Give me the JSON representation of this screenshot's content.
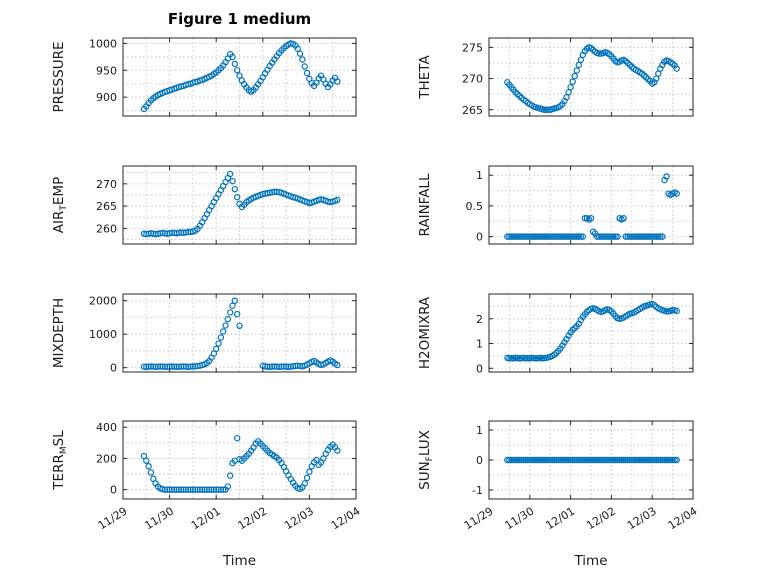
{
  "figure": {
    "title": "Figure 1 medium",
    "background": "#ffffff"
  },
  "style": {
    "marker_color": "#0072BD",
    "axis_color": "#262626",
    "grid_color": "#c8c8c8",
    "text_color": "#1a1a1a"
  },
  "time_axis": {
    "label": "Time",
    "xlim": [
      0,
      5
    ],
    "tick_positions": [
      0,
      1,
      2,
      3,
      4,
      5
    ],
    "tick_labels": [
      "11/29",
      "11/30",
      "12/01",
      "12/02",
      "12/03",
      "12/04"
    ]
  },
  "chart_data": [
    {
      "name": "PRESSURE",
      "type": "scatter",
      "marker": "open-circle",
      "ylabel_parts": {
        "pre": "PRESSURE",
        "sub": "",
        "post": ""
      },
      "ylim": [
        865,
        1010
      ],
      "yticks": [
        900,
        950,
        1000
      ],
      "x_start": 0.45,
      "x_step": 0.05,
      "values": [
        878,
        883,
        889,
        894,
        898,
        901,
        904,
        906,
        908,
        910,
        911,
        913,
        914,
        916,
        917,
        919,
        920,
        921,
        923,
        924,
        925,
        927,
        928,
        929,
        931,
        932,
        934,
        936,
        938,
        940,
        943,
        946,
        950,
        954,
        959,
        965,
        972,
        980,
        975,
        962,
        950,
        940,
        931,
        924,
        918,
        913,
        910,
        913,
        918,
        924,
        930,
        937,
        944,
        951,
        958,
        964,
        970,
        976,
        982,
        987,
        991,
        995,
        998,
        1000,
        999,
        996,
        990,
        981,
        970,
        957,
        945,
        934,
        926,
        921,
        927,
        935,
        940,
        933,
        925,
        919,
        924,
        931,
        936,
        929
      ]
    },
    {
      "name": "THETA",
      "type": "scatter",
      "marker": "open-circle",
      "ylabel_parts": {
        "pre": "THETA",
        "sub": "",
        "post": ""
      },
      "ylim": [
        264,
        276.5
      ],
      "yticks": [
        265,
        270,
        275
      ],
      "x_start": 0.45,
      "x_step": 0.05,
      "values": [
        269.4,
        269.0,
        268.6,
        268.2,
        267.8,
        267.5,
        267.2,
        266.9,
        266.6,
        266.4,
        266.1,
        265.9,
        265.7,
        265.5,
        265.4,
        265.3,
        265.2,
        265.1,
        265.0,
        265.0,
        265.0,
        265.0,
        265.1,
        265.2,
        265.3,
        265.4,
        265.6,
        265.9,
        266.4,
        267.0,
        267.8,
        268.6,
        269.5,
        270.4,
        271.3,
        272.2,
        273.0,
        273.8,
        274.4,
        274.8,
        275.0,
        274.9,
        274.6,
        274.3,
        274.1,
        274.0,
        274.0,
        274.1,
        274.2,
        274.1,
        273.9,
        273.6,
        273.2,
        272.8,
        272.6,
        272.7,
        272.9,
        273.0,
        272.8,
        272.5,
        272.2,
        271.9,
        271.6,
        271.4,
        271.2,
        271.0,
        270.8,
        270.5,
        270.2,
        269.9,
        269.6,
        269.2,
        269.4,
        270.0,
        270.8,
        271.6,
        272.2,
        272.7,
        272.9,
        272.8,
        272.6,
        272.4,
        272.1,
        271.6
      ]
    },
    {
      "name": "AIR_TEMP",
      "type": "scatter",
      "marker": "open-circle",
      "ylabel_parts": {
        "pre": "AIR",
        "sub": "T",
        "post": "EMP"
      },
      "ylim": [
        256.5,
        274
      ],
      "yticks": [
        260,
        265,
        270
      ],
      "x_start": 0.45,
      "x_step": 0.05,
      "values": [
        258.8,
        258.7,
        258.8,
        258.9,
        258.8,
        258.7,
        258.8,
        258.9,
        259.0,
        258.9,
        258.8,
        258.9,
        259.0,
        259.0,
        258.9,
        259.0,
        259.1,
        259.0,
        259.1,
        259.2,
        259.2,
        259.3,
        259.5,
        259.9,
        260.6,
        261.4,
        262.3,
        263.2,
        264.1,
        265.0,
        265.9,
        266.8,
        267.7,
        268.6,
        269.5,
        270.4,
        271.3,
        272.2,
        270.6,
        268.8,
        267.0,
        265.5,
        264.8,
        265.3,
        265.9,
        266.3,
        266.6,
        266.9,
        267.1,
        267.3,
        267.5,
        267.7,
        267.8,
        267.9,
        268.0,
        268.1,
        268.2,
        268.2,
        268.1,
        268.0,
        267.8,
        267.6,
        267.4,
        267.2,
        267.0,
        266.9,
        266.7,
        266.5,
        266.3,
        266.1,
        265.9,
        265.7,
        265.8,
        266.0,
        266.2,
        266.4,
        266.5,
        266.4,
        266.2,
        266.0,
        265.9,
        266.0,
        266.2,
        266.4
      ]
    },
    {
      "name": "RAINFALL",
      "type": "scatter",
      "marker": "open-circle",
      "ylabel_parts": {
        "pre": "RAINFALL",
        "sub": "",
        "post": ""
      },
      "ylim": [
        -0.12,
        1.15
      ],
      "yticks": [
        0,
        0.5,
        1
      ],
      "x_start": 0.45,
      "x_step": 0.05,
      "values": [
        0,
        0,
        0,
        0,
        0,
        0,
        0,
        0,
        0,
        0,
        0,
        0,
        0,
        0,
        0,
        0,
        0,
        0,
        0,
        0,
        0,
        0,
        0,
        0,
        0,
        0,
        0,
        0,
        0,
        0,
        0,
        0,
        0,
        0,
        0,
        0,
        0,
        0,
        0.3,
        0.3,
        0.28,
        0.3,
        0.08,
        0.05,
        0,
        0,
        0,
        0,
        0,
        0,
        0,
        0,
        0,
        0,
        0,
        0.3,
        0.28,
        0.3,
        0,
        0,
        0,
        0,
        0,
        0,
        0,
        0,
        0,
        0,
        0,
        0,
        0,
        0,
        0,
        0,
        0,
        0,
        0,
        0.92,
        0.98,
        0.7,
        0.68,
        0.7,
        0.72,
        0.7
      ]
    },
    {
      "name": "MIXDEPTH",
      "type": "scatter",
      "marker": "open-circle",
      "ylabel_parts": {
        "pre": "MIXDEPTH",
        "sub": "",
        "post": ""
      },
      "ylim": [
        -130,
        2200
      ],
      "yticks": [
        0,
        1000,
        2000
      ],
      "x_start": 0.45,
      "x_step": 0.05,
      "values": [
        30,
        25,
        30,
        35,
        30,
        25,
        30,
        35,
        30,
        30,
        25,
        30,
        35,
        30,
        25,
        30,
        30,
        35,
        30,
        25,
        30,
        35,
        40,
        50,
        60,
        80,
        100,
        140,
        200,
        300,
        420,
        560,
        720,
        900,
        1080,
        1260,
        1450,
        1650,
        1850,
        2000,
        1600,
        1250,
        null,
        null,
        null,
        null,
        null,
        null,
        null,
        null,
        null,
        60,
        40,
        30,
        25,
        30,
        35,
        30,
        25,
        30,
        35,
        30,
        25,
        30,
        40,
        50,
        60,
        50,
        40,
        60,
        90,
        130,
        170,
        200,
        160,
        110,
        80,
        100,
        140,
        180,
        220,
        180,
        120,
        80
      ]
    },
    {
      "name": "H2OMIXRA",
      "type": "scatter",
      "marker": "open-circle",
      "ylabel_parts": {
        "pre": "H2OMIXRA",
        "sub": "",
        "post": ""
      },
      "ylim": [
        -0.15,
        3.0
      ],
      "yticks": [
        0,
        1,
        2
      ],
      "x_start": 0.45,
      "x_step": 0.05,
      "values": [
        0.42,
        0.4,
        0.41,
        0.4,
        0.42,
        0.41,
        0.4,
        0.41,
        0.42,
        0.4,
        0.41,
        0.4,
        0.42,
        0.41,
        0.4,
        0.41,
        0.42,
        0.4,
        0.41,
        0.42,
        0.44,
        0.46,
        0.5,
        0.55,
        0.62,
        0.7,
        0.8,
        0.92,
        1.05,
        1.18,
        1.32,
        1.45,
        1.55,
        1.62,
        1.7,
        1.8,
        1.95,
        2.08,
        2.18,
        2.28,
        2.35,
        2.4,
        2.42,
        2.4,
        2.35,
        2.3,
        2.28,
        2.3,
        2.35,
        2.38,
        2.35,
        2.3,
        2.2,
        2.1,
        2.02,
        2.0,
        2.02,
        2.05,
        2.1,
        2.15,
        2.2,
        2.22,
        2.25,
        2.3,
        2.35,
        2.4,
        2.45,
        2.5,
        2.52,
        2.55,
        2.58,
        2.6,
        2.55,
        2.48,
        2.42,
        2.38,
        2.35,
        2.32,
        2.3,
        2.3,
        2.32,
        2.35,
        2.34,
        2.32
      ]
    },
    {
      "name": "TERR_MSL",
      "type": "scatter",
      "marker": "open-circle",
      "ylabel_parts": {
        "pre": "TERR",
        "sub": "M",
        "post": "SL"
      },
      "ylim": [
        -60,
        440
      ],
      "yticks": [
        0,
        200,
        400
      ],
      "x_start": 0.45,
      "x_step": 0.05,
      "values": [
        215,
        185,
        150,
        110,
        70,
        40,
        20,
        8,
        3,
        0,
        0,
        0,
        0,
        0,
        0,
        0,
        0,
        0,
        0,
        0,
        0,
        0,
        0,
        0,
        0,
        0,
        0,
        0,
        0,
        0,
        0,
        0,
        0,
        0,
        0,
        0,
        20,
        90,
        170,
        185,
        330,
        195,
        185,
        200,
        215,
        230,
        250,
        270,
        295,
        310,
        295,
        280,
        265,
        250,
        235,
        225,
        215,
        205,
        190,
        170,
        145,
        118,
        92,
        68,
        45,
        25,
        10,
        5,
        15,
        40,
        75,
        115,
        150,
        175,
        190,
        160,
        175,
        200,
        230,
        255,
        275,
        288,
        272,
        250
      ]
    },
    {
      "name": "SUN_FLUX",
      "type": "scatter",
      "marker": "open-circle",
      "ylabel_parts": {
        "pre": "SUN",
        "sub": "F",
        "post": "LUX"
      },
      "ylim": [
        -1.3,
        1.3
      ],
      "yticks": [
        -1,
        0,
        1
      ],
      "x_start": 0.45,
      "x_step": 0.05,
      "values": [
        0,
        0,
        0,
        0,
        0,
        0,
        0,
        0,
        0,
        0,
        0,
        0,
        0,
        0,
        0,
        0,
        0,
        0,
        0,
        0,
        0,
        0,
        0,
        0,
        0,
        0,
        0,
        0,
        0,
        0,
        0,
        0,
        0,
        0,
        0,
        0,
        0,
        0,
        0,
        0,
        0,
        0,
        0,
        0,
        0,
        0,
        0,
        0,
        0,
        0,
        0,
        0,
        0,
        0,
        0,
        0,
        0,
        0,
        0,
        0,
        0,
        0,
        0,
        0,
        0,
        0,
        0,
        0,
        0,
        0,
        0,
        0,
        0,
        0,
        0,
        0,
        0,
        0,
        0,
        0,
        0,
        0,
        0,
        0
      ]
    }
  ]
}
